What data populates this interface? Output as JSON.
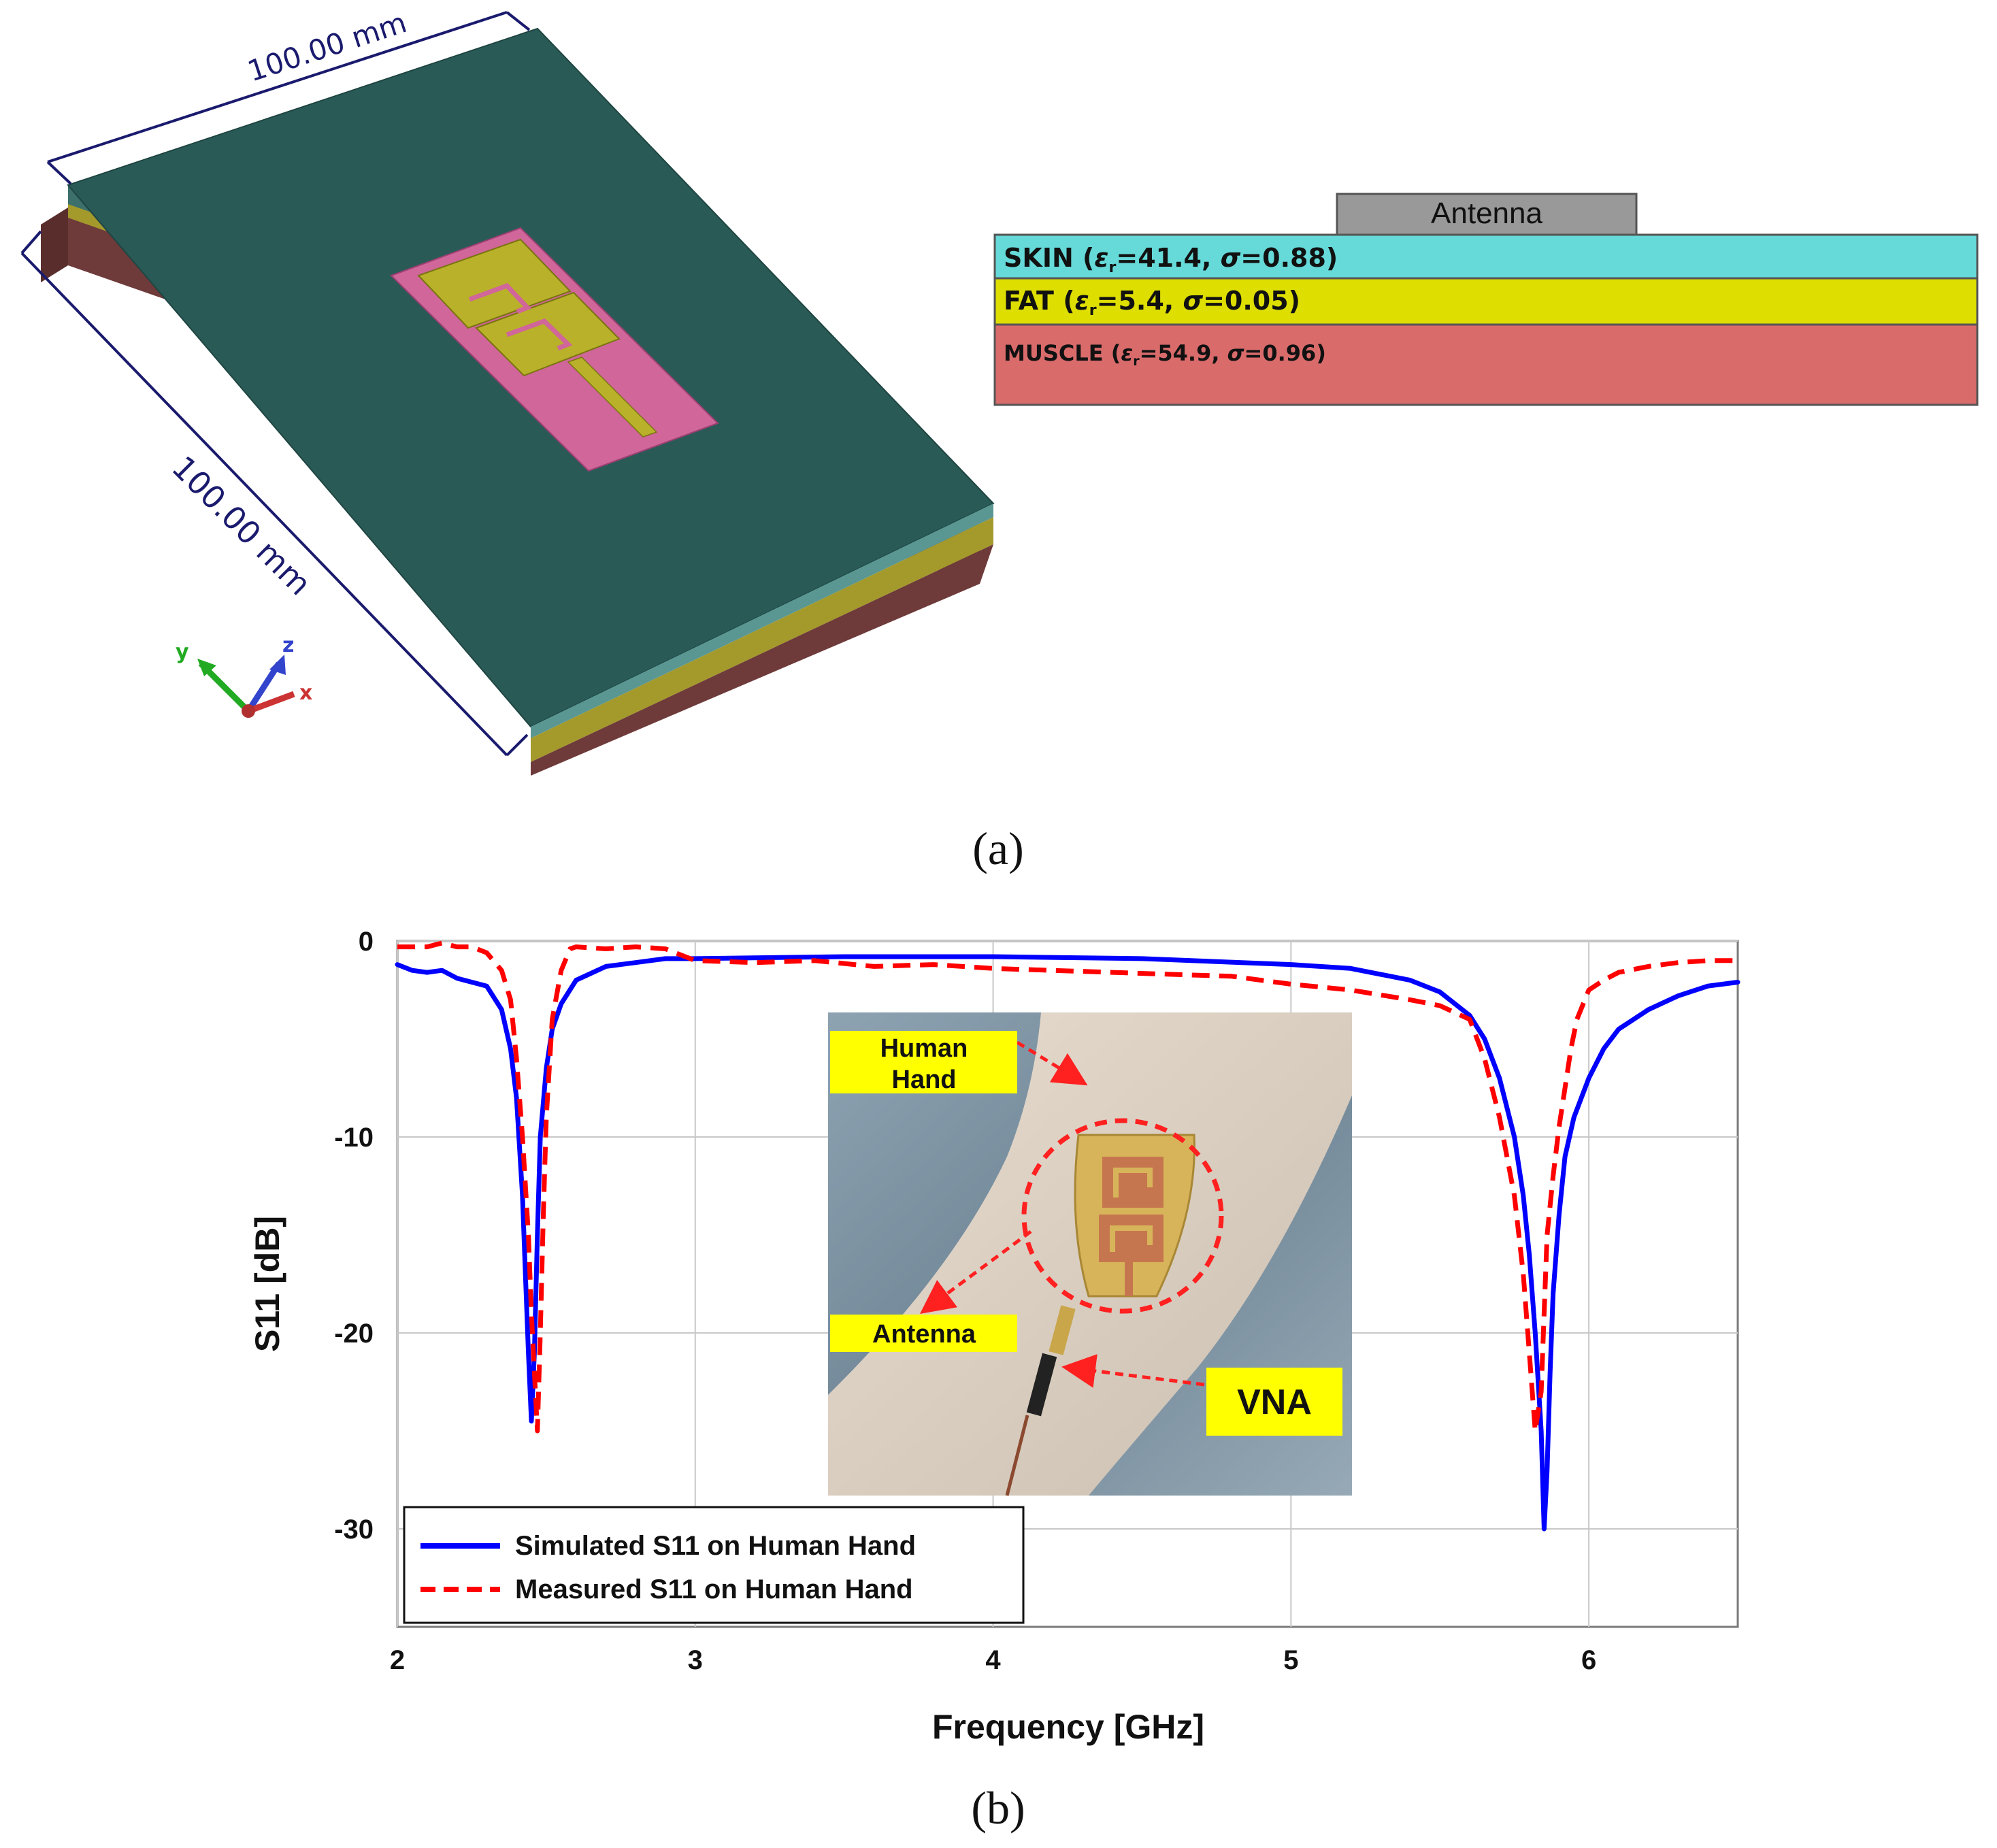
{
  "panel_a": {
    "caption": "(a)",
    "model3d": {
      "dim_top": "100.00 mm",
      "dim_side": "100.00 mm",
      "axis_labels": {
        "x": "x",
        "y": "y",
        "z": "z"
      },
      "colors": {
        "skin": "#2a5a56",
        "fat": "#a49a2c",
        "muscle": "#6e3a3a",
        "substrate": "#d0669a",
        "patch": "#b9b12a"
      }
    },
    "stack": {
      "antenna": "Antenna",
      "skin": {
        "name": "SKIN",
        "eps": "41.4",
        "sigma": "0.88",
        "color": "#66d9d9"
      },
      "fat": {
        "name": "FAT",
        "eps": "5.4",
        "sigma": "0.05",
        "color": "#dede00"
      },
      "muscle": {
        "name": "MUSCLE",
        "eps": "54.9",
        "sigma": "0.96",
        "color": "#d96b6b"
      }
    }
  },
  "panel_b": {
    "caption": "(b)",
    "inset": {
      "labels": {
        "hand": "Human Hand",
        "antenna": "Antenna",
        "vna": "VNA"
      }
    },
    "legend": {
      "simulated": "Simulated S11 on Human Hand",
      "measured": "Measured S11 on Human Hand"
    }
  },
  "chart_data": {
    "type": "line",
    "title": "",
    "xlabel": "Frequency [GHz]",
    "ylabel": "S11 [dB]",
    "xlim": [
      2,
      6.5
    ],
    "ylim": [
      -35,
      0
    ],
    "xticks": [
      2,
      3,
      4,
      5,
      6
    ],
    "yticks": [
      0,
      -10,
      -20,
      -30
    ],
    "grid": true,
    "legend_position": "bottom-left",
    "series": [
      {
        "name": "Simulated S11 on Human Hand",
        "color": "#0000ff",
        "style": "solid",
        "x": [
          2.0,
          2.05,
          2.1,
          2.15,
          2.2,
          2.25,
          2.3,
          2.35,
          2.38,
          2.4,
          2.42,
          2.43,
          2.44,
          2.45,
          2.46,
          2.47,
          2.48,
          2.5,
          2.52,
          2.55,
          2.6,
          2.7,
          2.8,
          2.9,
          3.0,
          3.5,
          4.0,
          4.5,
          5.0,
          5.2,
          5.4,
          5.5,
          5.6,
          5.65,
          5.7,
          5.75,
          5.78,
          5.8,
          5.82,
          5.84,
          5.85,
          5.86,
          5.87,
          5.88,
          5.9,
          5.92,
          5.95,
          6.0,
          6.05,
          6.1,
          6.2,
          6.3,
          6.4,
          6.5
        ],
        "y": [
          -1.2,
          -1.5,
          -1.6,
          -1.5,
          -1.9,
          -2.1,
          -2.3,
          -3.5,
          -5.5,
          -8,
          -13,
          -17,
          -21,
          -24.5,
          -21,
          -15,
          -10,
          -6.5,
          -4.5,
          -3.2,
          -2.0,
          -1.3,
          -1.1,
          -0.9,
          -0.9,
          -0.8,
          -0.8,
          -0.9,
          -1.2,
          -1.4,
          -2.0,
          -2.6,
          -3.8,
          -5.0,
          -7.0,
          -10.0,
          -13.0,
          -16.0,
          -20.0,
          -25.0,
          -30.0,
          -27.0,
          -22.0,
          -18.0,
          -14.0,
          -11.0,
          -9.0,
          -7.0,
          -5.5,
          -4.5,
          -3.5,
          -2.8,
          -2.3,
          -2.1
        ]
      },
      {
        "name": "Measured S11 on Human Hand",
        "color": "#ff0000",
        "style": "dashed",
        "x": [
          2.0,
          2.1,
          2.15,
          2.2,
          2.25,
          2.3,
          2.35,
          2.38,
          2.4,
          2.42,
          2.44,
          2.45,
          2.46,
          2.47,
          2.48,
          2.49,
          2.5,
          2.52,
          2.55,
          2.58,
          2.6,
          2.7,
          2.8,
          2.9,
          3.0,
          3.2,
          3.4,
          3.6,
          3.8,
          4.0,
          4.2,
          4.4,
          4.6,
          4.8,
          5.0,
          5.2,
          5.4,
          5.5,
          5.6,
          5.65,
          5.7,
          5.75,
          5.78,
          5.8,
          5.82,
          5.84,
          5.85,
          5.86,
          5.88,
          5.9,
          5.92,
          5.94,
          5.96,
          6.0,
          6.05,
          6.1,
          6.2,
          6.3,
          6.4,
          6.5
        ],
        "y": [
          -0.3,
          -0.3,
          -0.1,
          -0.3,
          -0.3,
          -0.6,
          -1.5,
          -3.0,
          -6.0,
          -10.0,
          -15.0,
          -19.0,
          -22.0,
          -25.0,
          -20.0,
          -14.0,
          -9.0,
          -4.0,
          -1.5,
          -0.4,
          -0.3,
          -0.4,
          -0.3,
          -0.4,
          -1.0,
          -1.1,
          -1.0,
          -1.3,
          -1.2,
          -1.4,
          -1.5,
          -1.6,
          -1.7,
          -1.8,
          -2.2,
          -2.5,
          -3.0,
          -3.3,
          -4.0,
          -6.0,
          -9.0,
          -13.0,
          -17.0,
          -21.0,
          -25.0,
          -23.0,
          -19.0,
          -15.0,
          -12.0,
          -9.5,
          -7.5,
          -5.5,
          -4.0,
          -2.5,
          -2.0,
          -1.6,
          -1.3,
          -1.1,
          -1.0,
          -1.0
        ]
      }
    ]
  }
}
